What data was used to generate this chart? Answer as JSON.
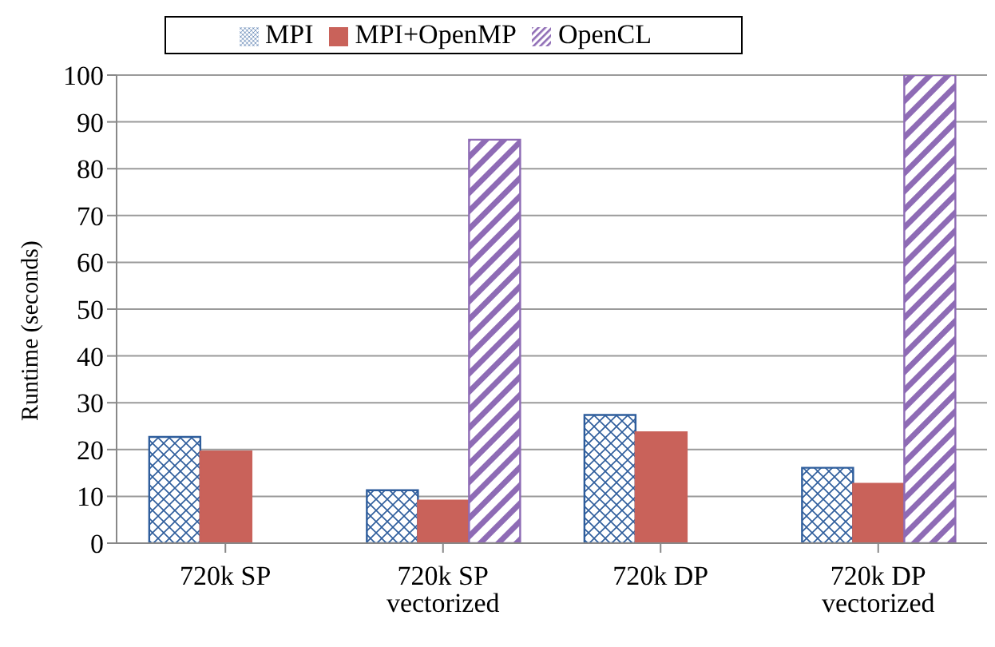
{
  "chart_data": {
    "type": "bar",
    "ylabel": "Runtime (seconds)",
    "categories": [
      "720k SP",
      "720k SP vectorized",
      "720k DP",
      "720k DP vectorized"
    ],
    "series": [
      {
        "name": "MPI",
        "color": "#2e5d9c",
        "values": [
          22.7,
          11.3,
          27.4,
          16.1
        ]
      },
      {
        "name": "MPI+OpenMP",
        "color": "#c9625a",
        "values": [
          19.6,
          9.1,
          23.7,
          12.7
        ]
      },
      {
        "name": "OpenCL",
        "color": "#8e6bb5",
        "values": [
          null,
          86.2,
          null,
          100
        ]
      }
    ],
    "ylim": [
      0,
      100
    ],
    "yticks": [
      0,
      10,
      20,
      30,
      40,
      50,
      60,
      70,
      80,
      90,
      100
    ],
    "grid": "y",
    "legend": "top"
  }
}
